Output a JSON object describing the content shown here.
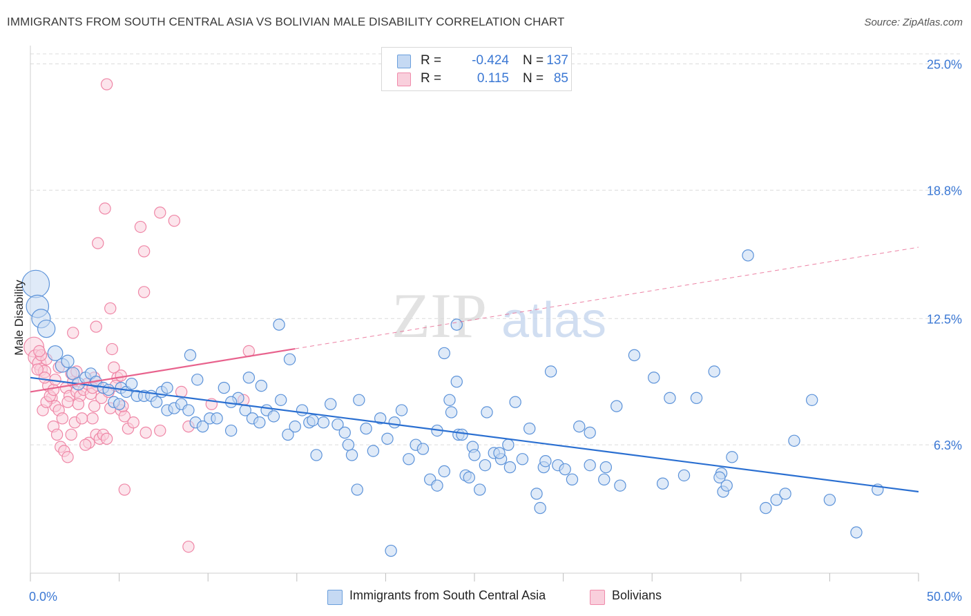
{
  "title": "IMMIGRANTS FROM SOUTH CENTRAL ASIA VS BOLIVIAN MALE DISABILITY CORRELATION CHART",
  "source": "Source: ZipAtlas.com",
  "watermark": {
    "part1": "ZIP",
    "part2": "atlas"
  },
  "legend": {
    "rows": [
      {
        "r_label": "R =",
        "r_value": "-0.424",
        "n_label": "N =",
        "n_value": "137",
        "color": "#6a9fdc"
      },
      {
        "r_label": "R =",
        "r_value": "0.115",
        "n_label": "N =",
        "n_value": "85",
        "color": "#f08aaa"
      }
    ]
  },
  "bottom_legend": {
    "series1": "Immigrants from South Central Asia",
    "series2": "Bolivians"
  },
  "colors": {
    "blue": "#5b92d9",
    "blue_fill": "#c5d9f3",
    "blue_line": "#2a6fd1",
    "pink": "#ef86a6",
    "pink_fill": "#f9cfdc",
    "pink_line": "#e8628d",
    "value_text": "#3b78d4",
    "grid": "#dcdcdc"
  },
  "chart_data": {
    "type": "scatter",
    "xlabel": "",
    "ylabel": "Male Disability",
    "xlim": [
      0,
      50
    ],
    "ylim": [
      0,
      25.9
    ],
    "x_tick_labels": [
      "0.0%",
      "50.0%"
    ],
    "y_ticks": [
      6.3,
      12.5,
      18.8,
      25.0
    ],
    "y_tick_labels": [
      "6.3%",
      "12.5%",
      "18.8%",
      "25.0%"
    ],
    "grid": true,
    "legend_position": "top-center",
    "series": [
      {
        "name": "Immigrants from South Central Asia",
        "color": "#5b92d9",
        "trend": {
          "x": [
            0,
            50
          ],
          "y": [
            9.6,
            4.0
          ],
          "solid_until": 50
        },
        "points": [
          [
            0.3,
            14.2,
            2.2
          ],
          [
            0.4,
            13.1,
            1.8
          ],
          [
            0.6,
            12.5,
            1.5
          ],
          [
            0.9,
            12.0,
            1.4
          ],
          [
            1.4,
            10.8,
            1.2
          ],
          [
            1.8,
            10.2,
            1.1
          ],
          [
            2.1,
            10.4,
            1.0
          ],
          [
            2.4,
            9.8,
            1.0
          ],
          [
            2.7,
            9.3,
            1.0
          ],
          [
            3.1,
            9.6,
            0.9
          ],
          [
            3.4,
            9.8,
            0.9
          ],
          [
            3.7,
            9.4,
            0.9
          ],
          [
            4.1,
            9.1,
            0.9
          ],
          [
            4.4,
            9.0,
            0.9
          ],
          [
            4.7,
            8.4,
            0.9
          ],
          [
            5.1,
            9.1,
            0.9
          ],
          [
            5.4,
            8.9,
            0.9
          ],
          [
            5.7,
            9.3,
            0.9
          ],
          [
            5.0,
            8.3,
            0.9
          ],
          [
            6.0,
            8.7,
            0.9
          ],
          [
            6.4,
            8.7,
            0.9
          ],
          [
            6.8,
            8.7,
            0.9
          ],
          [
            7.1,
            8.4,
            0.9
          ],
          [
            7.4,
            8.9,
            0.9
          ],
          [
            7.7,
            8.0,
            0.9
          ],
          [
            8.1,
            8.1,
            0.9
          ],
          [
            8.5,
            8.3,
            0.9
          ],
          [
            8.9,
            8.0,
            0.9
          ],
          [
            9.3,
            7.4,
            0.9
          ],
          [
            9.7,
            7.2,
            0.9
          ],
          [
            10.1,
            7.6,
            0.9
          ],
          [
            10.5,
            7.6,
            0.9
          ],
          [
            10.9,
            9.1,
            0.9
          ],
          [
            11.3,
            7.0,
            0.9
          ],
          [
            11.7,
            8.6,
            0.9
          ],
          [
            12.1,
            8.0,
            0.9
          ],
          [
            12.5,
            7.6,
            0.9
          ],
          [
            12.9,
            7.4,
            0.9
          ],
          [
            13.3,
            8.0,
            0.9
          ],
          [
            13.7,
            7.7,
            0.9
          ],
          [
            14.1,
            8.5,
            0.9
          ],
          [
            14.5,
            6.8,
            0.9
          ],
          [
            14.9,
            7.2,
            0.9
          ],
          [
            15.3,
            8.0,
            0.9
          ],
          [
            15.7,
            7.4,
            0.9
          ],
          [
            16.1,
            5.8,
            0.9
          ],
          [
            16.5,
            7.4,
            0.9
          ],
          [
            16.9,
            8.3,
            0.9
          ],
          [
            17.3,
            7.3,
            0.9
          ],
          [
            17.7,
            6.9,
            0.9
          ],
          [
            18.1,
            5.8,
            0.9
          ],
          [
            18.5,
            8.5,
            0.9
          ],
          [
            18.9,
            7.1,
            0.9
          ],
          [
            19.3,
            6.0,
            0.9
          ],
          [
            19.7,
            7.6,
            0.9
          ],
          [
            20.1,
            6.6,
            0.9
          ],
          [
            20.5,
            7.4,
            0.9
          ],
          [
            20.9,
            8.0,
            0.9
          ],
          [
            21.3,
            5.6,
            0.9
          ],
          [
            21.7,
            6.3,
            0.9
          ],
          [
            22.1,
            6.1,
            0.9
          ],
          [
            22.5,
            4.6,
            0.9
          ],
          [
            22.9,
            7.0,
            0.9
          ],
          [
            23.3,
            5.0,
            0.9
          ],
          [
            23.7,
            7.9,
            0.9
          ],
          [
            24.1,
            6.8,
            0.9
          ],
          [
            24.5,
            4.8,
            0.9
          ],
          [
            24.9,
            6.2,
            0.9
          ],
          [
            25.3,
            4.1,
            0.9
          ],
          [
            25.7,
            7.9,
            0.9
          ],
          [
            26.1,
            5.9,
            0.9
          ],
          [
            26.5,
            5.6,
            0.9
          ],
          [
            26.9,
            6.3,
            0.9
          ],
          [
            27.3,
            8.4,
            0.9
          ],
          [
            27.7,
            5.6,
            0.9
          ],
          [
            28.1,
            7.1,
            0.9
          ],
          [
            28.5,
            3.9,
            0.9
          ],
          [
            28.9,
            5.2,
            0.9
          ],
          [
            29.3,
            9.9,
            0.9
          ],
          [
            29.7,
            5.3,
            0.9
          ],
          [
            30.1,
            5.1,
            0.9
          ],
          [
            30.5,
            4.6,
            0.9
          ],
          [
            30.9,
            7.2,
            0.9
          ],
          [
            23.6,
            8.5,
            0.9
          ],
          [
            24.3,
            6.8,
            0.9
          ],
          [
            25.0,
            5.8,
            0.9
          ],
          [
            25.6,
            5.3,
            0.9
          ],
          [
            26.4,
            5.9,
            0.9
          ],
          [
            27.0,
            5.2,
            0.9
          ],
          [
            29.0,
            5.5,
            0.9
          ],
          [
            31.5,
            6.9,
            0.9
          ],
          [
            32.4,
            5.2,
            0.9
          ],
          [
            33.0,
            8.2,
            0.9
          ],
          [
            34.0,
            10.7,
            0.9
          ],
          [
            35.1,
            9.6,
            0.9
          ],
          [
            35.6,
            4.4,
            0.9
          ],
          [
            36.0,
            8.6,
            0.9
          ],
          [
            36.8,
            4.8,
            0.9
          ],
          [
            37.5,
            8.6,
            0.9
          ],
          [
            38.5,
            9.9,
            0.9
          ],
          [
            38.9,
            4.9,
            0.9
          ],
          [
            39.5,
            5.7,
            0.9
          ],
          [
            40.4,
            15.6,
            0.9
          ],
          [
            41.4,
            3.2,
            0.9
          ],
          [
            42.0,
            3.6,
            0.9
          ],
          [
            42.5,
            3.9,
            0.9
          ],
          [
            43.0,
            6.5,
            0.9
          ],
          [
            44.0,
            8.5,
            0.9
          ],
          [
            45.0,
            3.6,
            0.9
          ],
          [
            46.5,
            2.0,
            0.9
          ],
          [
            47.7,
            4.1,
            0.9
          ],
          [
            38.8,
            4.7,
            0.9
          ],
          [
            39.0,
            4.0,
            0.9
          ],
          [
            39.2,
            4.3,
            0.9
          ],
          [
            24.0,
            12.2,
            0.9
          ],
          [
            14.0,
            12.2,
            0.9
          ],
          [
            9.0,
            10.7,
            0.9
          ],
          [
            14.6,
            10.5,
            0.9
          ],
          [
            23.3,
            10.8,
            0.9
          ],
          [
            24.0,
            9.4,
            0.9
          ],
          [
            9.4,
            9.5,
            0.9
          ],
          [
            11.3,
            8.4,
            0.9
          ],
          [
            12.3,
            9.6,
            0.9
          ],
          [
            13.0,
            9.2,
            0.9
          ],
          [
            7.7,
            9.1,
            0.9
          ],
          [
            31.5,
            5.3,
            0.9
          ],
          [
            32.3,
            4.6,
            0.9
          ],
          [
            33.2,
            4.3,
            0.9
          ],
          [
            15.9,
            7.5,
            0.9
          ],
          [
            17.9,
            6.3,
            0.9
          ],
          [
            18.4,
            4.1,
            0.9
          ],
          [
            20.3,
            1.1,
            0.9
          ],
          [
            28.7,
            3.2,
            0.9
          ],
          [
            22.9,
            4.3,
            0.9
          ],
          [
            24.7,
            4.7,
            0.9
          ]
        ]
      },
      {
        "name": "Bolivians",
        "color": "#ef86a6",
        "trend": {
          "x": [
            0,
            50
          ],
          "y": [
            8.9,
            16.0
          ],
          "solid_until": 14.9
        },
        "points": [
          [
            0.2,
            11.1,
            1.6
          ],
          [
            0.3,
            10.6,
            1.2
          ],
          [
            0.5,
            10.3,
            1.1
          ],
          [
            0.6,
            10.0,
            1.0
          ],
          [
            0.8,
            9.9,
            1.0
          ],
          [
            1.0,
            9.2,
            0.9
          ],
          [
            1.2,
            8.6,
            0.9
          ],
          [
            1.4,
            8.2,
            0.9
          ],
          [
            1.6,
            8.0,
            0.9
          ],
          [
            1.8,
            7.6,
            0.9
          ],
          [
            2.0,
            9.1,
            0.9
          ],
          [
            2.2,
            8.7,
            0.9
          ],
          [
            2.4,
            9.4,
            0.9
          ],
          [
            2.6,
            8.9,
            0.9
          ],
          [
            2.8,
            8.7,
            0.9
          ],
          [
            3.0,
            9.0,
            0.9
          ],
          [
            3.2,
            9.3,
            0.9
          ],
          [
            3.4,
            8.8,
            0.9
          ],
          [
            3.6,
            9.6,
            0.9
          ],
          [
            3.8,
            9.2,
            0.9
          ],
          [
            4.0,
            8.6,
            0.9
          ],
          [
            1.3,
            7.2,
            0.9
          ],
          [
            1.5,
            6.8,
            0.9
          ],
          [
            1.7,
            6.2,
            0.9
          ],
          [
            1.9,
            6.0,
            0.9
          ],
          [
            2.1,
            5.7,
            0.9
          ],
          [
            2.3,
            6.8,
            0.9
          ],
          [
            2.5,
            7.4,
            0.9
          ],
          [
            2.7,
            8.3,
            0.9
          ],
          [
            3.3,
            6.4,
            0.9
          ],
          [
            3.5,
            7.6,
            0.9
          ],
          [
            3.7,
            6.8,
            0.9
          ],
          [
            3.9,
            6.6,
            0.9
          ],
          [
            4.1,
            6.8,
            0.9
          ],
          [
            4.3,
            6.6,
            0.9
          ],
          [
            4.5,
            8.1,
            0.9
          ],
          [
            4.7,
            10.1,
            0.9
          ],
          [
            4.9,
            9.6,
            0.9
          ],
          [
            5.1,
            8.0,
            0.9
          ],
          [
            5.3,
            7.7,
            0.9
          ],
          [
            5.5,
            7.1,
            0.9
          ],
          [
            6.5,
            6.9,
            0.9
          ],
          [
            7.3,
            17.7,
            0.9
          ],
          [
            8.1,
            17.3,
            0.9
          ],
          [
            6.2,
            17.0,
            0.9
          ],
          [
            4.2,
            17.9,
            0.9
          ],
          [
            3.8,
            16.2,
            0.9
          ],
          [
            6.4,
            15.8,
            0.9
          ],
          [
            6.4,
            13.8,
            0.9
          ],
          [
            4.5,
            13.0,
            0.9
          ],
          [
            3.7,
            12.1,
            0.9
          ],
          [
            2.4,
            11.8,
            0.9
          ],
          [
            0.9,
            10.5,
            0.9
          ],
          [
            1.6,
            10.1,
            0.9
          ],
          [
            4.6,
            11.0,
            0.9
          ],
          [
            10.2,
            8.3,
            0.9
          ],
          [
            8.9,
            7.2,
            0.9
          ],
          [
            8.5,
            8.9,
            0.9
          ],
          [
            7.3,
            7.0,
            0.9
          ],
          [
            5.8,
            7.4,
            0.9
          ],
          [
            5.1,
            9.7,
            0.9
          ],
          [
            4.3,
            24.0,
            0.9
          ],
          [
            5.3,
            4.1,
            0.9
          ],
          [
            8.9,
            1.3,
            0.9
          ],
          [
            12.0,
            8.5,
            0.9
          ],
          [
            12.3,
            10.9,
            0.9
          ],
          [
            0.7,
            8.0,
            0.9
          ],
          [
            0.9,
            8.4,
            0.9
          ],
          [
            1.1,
            8.7,
            0.9
          ],
          [
            1.3,
            9.0,
            0.9
          ],
          [
            2.9,
            7.6,
            0.9
          ],
          [
            3.1,
            6.3,
            0.9
          ],
          [
            0.4,
            10.0,
            0.9
          ],
          [
            0.6,
            10.7,
            0.9
          ],
          [
            0.8,
            9.6,
            0.9
          ],
          [
            2.3,
            9.8,
            0.9
          ],
          [
            3.5,
            9.1,
            0.9
          ],
          [
            4.4,
            8.9,
            0.9
          ],
          [
            2.1,
            8.4,
            0.9
          ],
          [
            1.4,
            9.5,
            0.9
          ],
          [
            0.5,
            10.9,
            0.9
          ],
          [
            4.8,
            9.2,
            0.9
          ],
          [
            5.2,
            8.2,
            0.9
          ],
          [
            2.6,
            9.9,
            0.9
          ],
          [
            3.6,
            8.2,
            0.9
          ]
        ]
      }
    ]
  }
}
